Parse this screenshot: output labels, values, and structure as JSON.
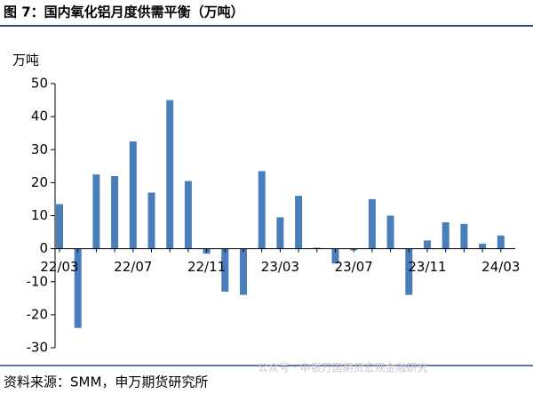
{
  "title": "图 7：国内氧化铝月度供需平衡（万吨）",
  "source": "资料来源：SMM，申万期货研究所",
  "watermark": "公众号 · 申银万国期货宏观金融研究",
  "chart_data": {
    "type": "bar",
    "y_label": "万吨",
    "categories": [
      "22/03",
      null,
      null,
      null,
      "22/07",
      null,
      null,
      null,
      "22/11",
      null,
      null,
      null,
      "23/03",
      null,
      null,
      null,
      "23/07",
      null,
      null,
      null,
      "23/11",
      null,
      null,
      null,
      "24/03"
    ],
    "values": [
      13.5,
      -24,
      22.5,
      22,
      32.5,
      17,
      45,
      20.5,
      -1.5,
      -13,
      -14,
      23.5,
      9.5,
      16,
      0.3,
      -4.5,
      -0.5,
      15,
      10,
      -14,
      2.5,
      8,
      7.5,
      1.5,
      4
    ],
    "color": "#4a7ebb",
    "ylim": [
      -30,
      50
    ],
    "yticks": [
      -30,
      -20,
      -10,
      0,
      10,
      20,
      30,
      40,
      50
    ]
  }
}
